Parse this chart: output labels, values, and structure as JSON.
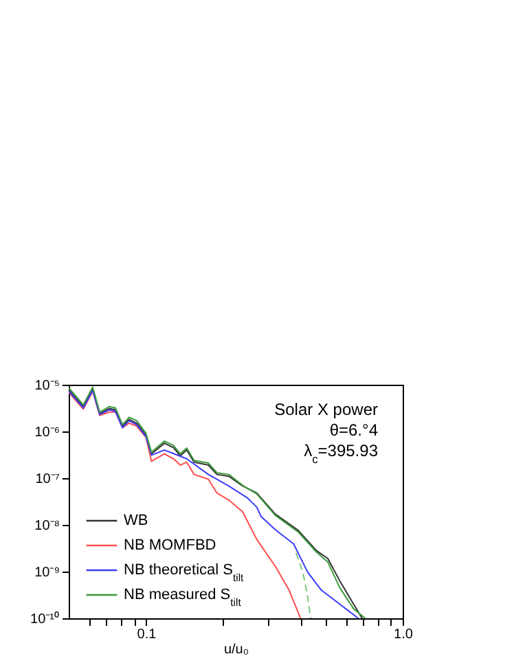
{
  "chart_data": {
    "type": "line",
    "xlabel": "u/u₀",
    "log": "xy",
    "legend": "bottom left",
    "grid": false,
    "annotations": [
      "Solar X power",
      "θ=6.°4",
      "λ$_{c}$=395.93"
    ],
    "xlim": [
      0.05,
      1.0
    ],
    "ylim": [
      1e-10,
      1e-05
    ],
    "xticks": [
      {
        "value": 0.06,
        "label": null
      },
      {
        "value": 0.07,
        "label": null
      },
      {
        "value": 0.08,
        "label": null
      },
      {
        "value": 0.09,
        "label": null
      },
      {
        "value": 0.1,
        "label": "0.1"
      },
      {
        "value": 0.2,
        "label": null
      },
      {
        "value": 0.3,
        "label": null
      },
      {
        "value": 0.4,
        "label": null
      },
      {
        "value": 0.5,
        "label": null
      },
      {
        "value": 0.6,
        "label": null
      },
      {
        "value": 0.7,
        "label": null
      },
      {
        "value": 0.8,
        "label": null
      },
      {
        "value": 0.9,
        "label": null
      },
      {
        "value": 1,
        "label": "1.0"
      }
    ],
    "yticks": [
      {
        "value": 1e-10,
        "label": "10⁻¹⁰"
      },
      {
        "value": 1e-09,
        "label": "10⁻⁹"
      },
      {
        "value": 1e-08,
        "label": "10⁻⁸"
      },
      {
        "value": 1e-07,
        "label": "10⁻⁷"
      },
      {
        "value": 1e-06,
        "label": "10⁻⁶"
      },
      {
        "value": 1e-05,
        "label": "10⁻⁵"
      }
    ],
    "series": [
      {
        "name": "WB",
        "color": "#333333",
        "x": [
          0.05,
          0.057,
          0.062,
          0.066,
          0.072,
          0.076,
          0.081,
          0.086,
          0.092,
          0.1,
          0.105,
          0.118,
          0.128,
          0.136,
          0.144,
          0.154,
          0.175,
          0.189,
          0.21,
          0.238,
          0.27,
          0.319,
          0.392,
          0.462,
          0.511,
          0.569,
          0.644,
          0.695
        ],
        "values": [
          7.8e-06,
          3.4e-06,
          8.1e-06,
          2.4e-06,
          3.1e-06,
          2.9e-06,
          1.3e-06,
          1.8e-06,
          1.5e-06,
          8.3e-07,
          3.3e-07,
          5.6e-07,
          4.5e-07,
          3e-07,
          4e-07,
          2.2e-07,
          1.9e-07,
          1.2e-07,
          1.1e-07,
          6.8e-08,
          4.8e-08,
          1.7e-08,
          7.6e-09,
          2.8e-09,
          1.9e-09,
          6.3e-10,
          2e-10,
          1e-10
        ]
      },
      {
        "name": "NB MOMFBD",
        "color": "#ff4d4d",
        "x": [
          0.05,
          0.057,
          0.062,
          0.066,
          0.072,
          0.076,
          0.081,
          0.086,
          0.092,
          0.1,
          0.105,
          0.118,
          0.128,
          0.136,
          0.144,
          0.154,
          0.175,
          0.189,
          0.21,
          0.238,
          0.27,
          0.319,
          0.361,
          0.4
        ],
        "values": [
          6.9e-06,
          3e-06,
          7.2e-06,
          2.2e-06,
          2.6e-06,
          2.6e-06,
          1.2e-06,
          1.5e-06,
          1.3e-06,
          7.4e-07,
          2.3e-07,
          3.3e-07,
          2.6e-07,
          1.9e-07,
          2.2e-07,
          1.2e-07,
          9.5e-08,
          4.8e-08,
          3.4e-08,
          1.9e-08,
          4.9e-09,
          1.3e-09,
          4e-10,
          1e-10
        ]
      },
      {
        "name": "NB theoretical S$_{tilt}$",
        "color": "#3b3bff",
        "x": [
          0.05,
          0.057,
          0.062,
          0.066,
          0.072,
          0.076,
          0.081,
          0.086,
          0.092,
          0.1,
          0.105,
          0.118,
          0.144,
          0.175,
          0.21,
          0.248,
          0.27,
          0.281,
          0.319,
          0.376,
          0.426,
          0.482,
          0.569,
          0.671
        ],
        "values": [
          7.3e-06,
          3.2e-06,
          7.6e-06,
          2.3e-06,
          2.9e-06,
          2.7e-06,
          1.2e-06,
          1.7e-06,
          1.4e-06,
          7.8e-07,
          3.1e-07,
          4e-07,
          2.6e-07,
          1.2e-07,
          6.8e-08,
          3.8e-08,
          2.4e-08,
          1.5e-08,
          7.9e-09,
          3.9e-09,
          9.8e-10,
          4e-10,
          2e-10,
          1e-10
        ]
      },
      {
        "name": "NB measured S$_{tilt}$",
        "color": "#3a9a3a",
        "x": [
          0.05,
          0.057,
          0.062,
          0.066,
          0.072,
          0.076,
          0.081,
          0.086,
          0.092,
          0.1,
          0.105,
          0.118,
          0.128,
          0.136,
          0.144,
          0.154,
          0.175,
          0.189,
          0.21,
          0.238,
          0.27,
          0.319,
          0.392,
          0.462,
          0.511,
          0.569,
          0.644,
          0.714
        ],
        "values": [
          8.6e-06,
          3.7e-06,
          8.9e-06,
          2.6e-06,
          3.4e-06,
          3.2e-06,
          1.4e-06,
          2e-06,
          1.7e-06,
          9.1e-07,
          3.6e-07,
          6.2e-07,
          5e-07,
          3.3e-07,
          4.4e-07,
          2.4e-07,
          2.1e-07,
          1.3e-07,
          1.2e-07,
          7e-08,
          4.6e-08,
          1.6e-08,
          7e-09,
          2.6e-09,
          1.6e-09,
          4.5e-10,
          1.6e-10,
          1e-10
        ]
      },
      {
        "color": "#7cc47c",
        "line_style": "dashed",
        "x": [
          0.384,
          0.408,
          0.425,
          0.438
        ],
        "values": [
          2.5e-09,
          1e-09,
          3.2e-10,
          1e-10
        ]
      }
    ]
  }
}
